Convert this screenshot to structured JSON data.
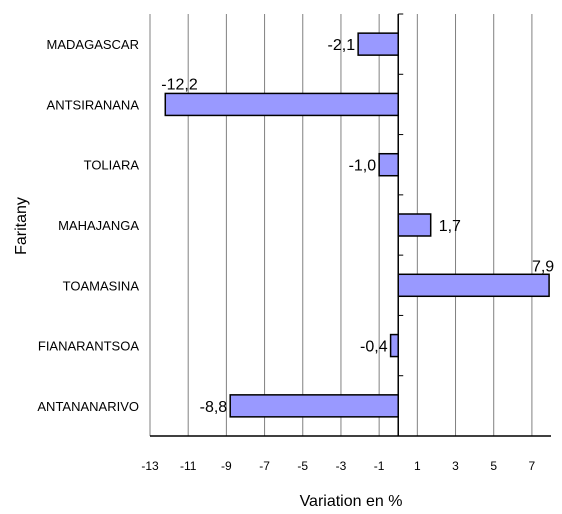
{
  "chart_data": {
    "type": "bar",
    "orientation": "horizontal",
    "title": "",
    "xlabel": "Variation en %",
    "ylabel": "Faritany",
    "xlim": [
      -13,
      8
    ],
    "xticks": [
      -13,
      -11,
      -9,
      -7,
      -5,
      -3,
      -1,
      1,
      3,
      5,
      7
    ],
    "grid": "vertical",
    "categories": [
      "MADAGASCAR",
      "ANTSIRANANA",
      "TOLIARA",
      "MAHAJANGA",
      "TOAMASINA",
      "FIANARANTSOA",
      "ANTANANARIVO"
    ],
    "values": [
      -2.1,
      -12.2,
      -1.0,
      1.7,
      7.9,
      -0.4,
      -8.8
    ],
    "data_labels": [
      "-2,1",
      "-12,2",
      "-1,0",
      "1,7",
      "7,9",
      "-0,4",
      "-8,8"
    ],
    "bar_color": "#9999ff"
  }
}
